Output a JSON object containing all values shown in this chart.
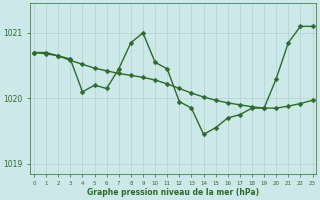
{
  "x_values": [
    0,
    1,
    2,
    3,
    4,
    5,
    6,
    7,
    8,
    9,
    10,
    11,
    12,
    13,
    14,
    15,
    16,
    17,
    18,
    19,
    20,
    21,
    22,
    23
  ],
  "y_line1": [
    1020.7,
    1020.7,
    1020.65,
    1020.6,
    1020.1,
    1020.2,
    1020.15,
    1020.45,
    1020.85,
    1021.0,
    1020.55,
    1020.45,
    1019.95,
    1019.85,
    1019.45,
    1019.55,
    1019.7,
    1019.75,
    1019.85,
    1019.85,
    1020.3,
    1020.85,
    1021.1,
    1021.1
  ],
  "y_line2": [
    1020.7,
    1020.7,
    1020.65,
    1020.55,
    1020.45,
    1020.4,
    1020.4,
    1020.4,
    1020.45,
    1020.5,
    1020.5,
    1020.45,
    1020.35,
    1020.2,
    1020.1,
    1020.0,
    1019.95,
    1019.9,
    1019.85,
    1019.85,
    1019.85,
    1019.9,
    1019.95,
    1020.0
  ],
  "line_color": "#2d6a2d",
  "bg_color": "#cde8e8",
  "grid_color": "#aacccc",
  "axis_color": "#2d6a2d",
  "label_color": "#2d6a2d",
  "ylim": [
    1018.85,
    1021.45
  ],
  "yticks": [
    1019,
    1020,
    1021
  ],
  "xlabel": "Graphe pression niveau de la mer (hPa)",
  "marker_size": 2.5,
  "line_width": 1.0
}
